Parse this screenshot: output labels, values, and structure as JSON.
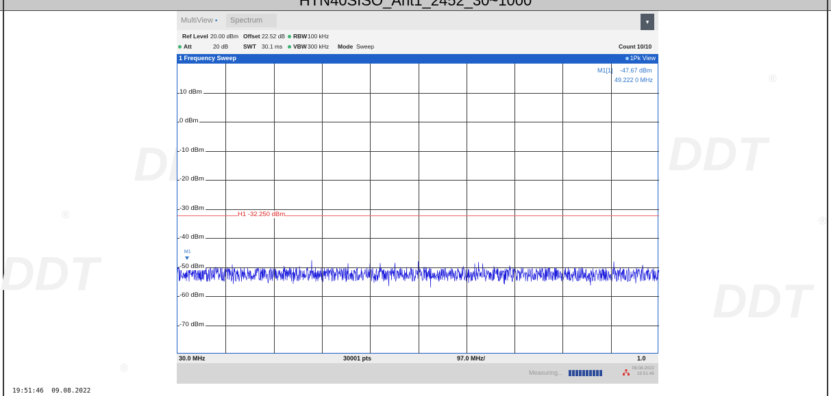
{
  "window": {
    "title": "HTN40SISO_Ant1_2452_30~1000"
  },
  "tabs": [
    {
      "label": "MultiView"
    },
    {
      "label": "Spectrum"
    }
  ],
  "menu_icon": "chevron-down-icon",
  "settings": {
    "ref_level_label": "Ref Level",
    "ref_level_value": "20.00 dBm",
    "offset_label": "Offset",
    "offset_value": "22.52 dB",
    "rbw_label": "RBW",
    "rbw_value": "100 kHz",
    "att_label": "Att",
    "att_value": "20 dB",
    "swt_label": "SWT",
    "swt_value": "30.1 ms",
    "vbw_label": "VBW",
    "vbw_value": "300 kHz",
    "mode_label": "Mode",
    "mode_value": "Sweep",
    "count_label": "Count 10/10"
  },
  "sweep": {
    "title": "1 Frequency Sweep",
    "view": "1Pk View"
  },
  "marker": {
    "name": "M1[1]",
    "level": "-47.67 dBm",
    "frequency": "49.222 0 MHz",
    "label": "M1"
  },
  "limit_line": {
    "label": "H1 -32.250 dBm"
  },
  "chart_data": {
    "type": "line",
    "ylabels": [
      "10 dBm",
      "0 dBm",
      "-10 dBm",
      "-20 dBm",
      "-30 dBm",
      "-40 dBm",
      "-50 dBm",
      "-60 dBm",
      "-70 dBm"
    ],
    "ylim": [
      -80,
      20
    ],
    "xlim_mhz": [
      30.0,
      1000.0
    ],
    "series": [
      {
        "noise_floor_dbm": -52.5,
        "noise_spread_db": 2.5
      }
    ],
    "h1_dbm": -32.25,
    "marker_mhz": 49.222,
    "marker_dbm": -47.67
  },
  "footer": {
    "start": "30.0 MHz",
    "points": "30001 pts",
    "span_per_div": "97.0 MHz/",
    "stop": "1.0 GHz"
  },
  "status": {
    "measuring": "Measuring...",
    "date": "09.08.2022",
    "time": "19:51:45"
  },
  "timestamp": "19:51:46  09.08.2022",
  "watermark": {
    "text": "DDT",
    "registered": "®"
  }
}
